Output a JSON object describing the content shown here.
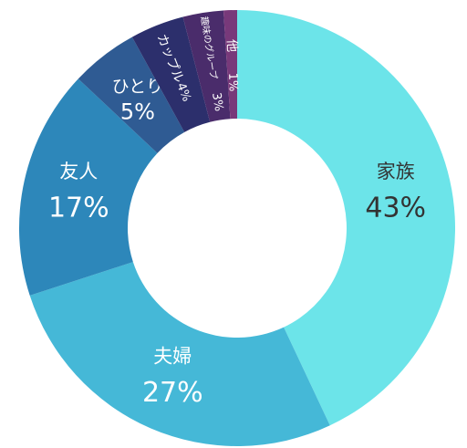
{
  "chart_data": {
    "type": "pie",
    "categories": [
      "家族",
      "夫婦",
      "友人",
      "ひとり",
      "カップル",
      "趣味のグループ",
      "他"
    ],
    "values": [
      43,
      27,
      17,
      5,
      4,
      3,
      1
    ],
    "value_labels": [
      "43%",
      "27%",
      "17%",
      "5%",
      "4%",
      "3%",
      "1%"
    ],
    "colors": [
      "#6ce4e9",
      "#45b8d7",
      "#2d87ba",
      "#2f5b93",
      "#2c2f6c",
      "#4a2c6b",
      "#78397a"
    ]
  }
}
